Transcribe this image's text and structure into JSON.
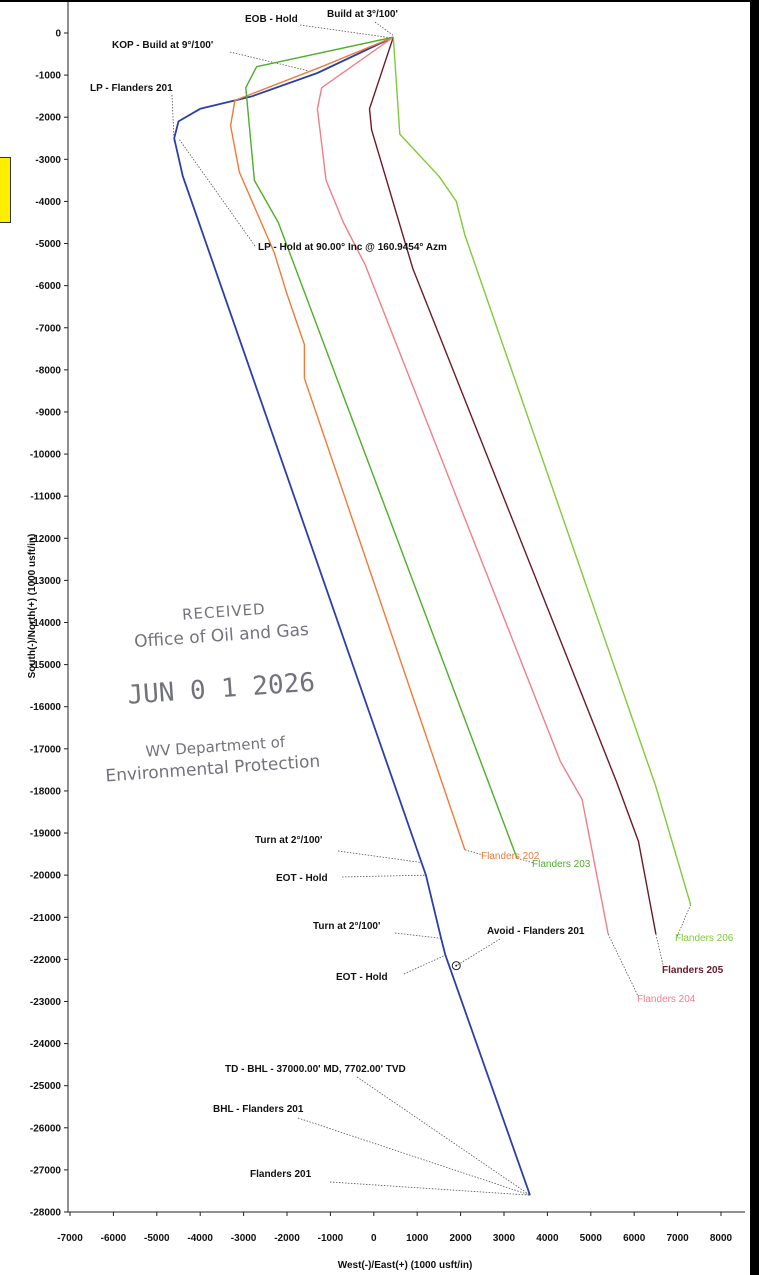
{
  "chart_data": {
    "type": "line",
    "xlabel": "West(-)/East(+) (1000 usft/in)",
    "ylabel": "South(-)/North(+) (1000 usft/in)",
    "xlim": [
      -7000,
      8000
    ],
    "ylim": [
      -28000,
      0
    ],
    "xticks": [
      -7000,
      -6000,
      -5000,
      -4000,
      -3000,
      -2000,
      -1000,
      0,
      1000,
      2000,
      3000,
      4000,
      5000,
      6000,
      7000,
      8000
    ],
    "yticks": [
      0,
      -1000,
      -2000,
      -3000,
      -4000,
      -5000,
      -6000,
      -7000,
      -8000,
      -9000,
      -10000,
      -11000,
      -12000,
      -13000,
      -14000,
      -15000,
      -16000,
      -17000,
      -18000,
      -19000,
      -20000,
      -21000,
      -22000,
      -23000,
      -24000,
      -25000,
      -26000,
      -27000,
      -28000
    ],
    "series": [
      {
        "name": "Flanders 201",
        "color": "#2b3fa8",
        "points": [
          [
            450,
            -100
          ],
          [
            -1300,
            -950
          ],
          [
            -2800,
            -1500
          ],
          [
            -4000,
            -1800
          ],
          [
            -4500,
            -2100
          ],
          [
            -4600,
            -2500
          ],
          [
            -4400,
            -3400
          ],
          [
            1100,
            -19700
          ],
          [
            1200,
            -20000
          ],
          [
            1550,
            -21500
          ],
          [
            1650,
            -21900
          ],
          [
            3600,
            -27600
          ]
        ]
      },
      {
        "name": "Flanders 202",
        "color": "#f07a3a",
        "points": [
          [
            450,
            -100
          ],
          [
            -1200,
            -800
          ],
          [
            -3200,
            -1600
          ],
          [
            -3300,
            -2200
          ],
          [
            -3100,
            -3300
          ],
          [
            -2300,
            -5200
          ],
          [
            -2000,
            -6200
          ],
          [
            -1600,
            -7400
          ],
          [
            -1600,
            -8200
          ],
          [
            2100,
            -19400
          ]
        ]
      },
      {
        "name": "Flanders 203",
        "color": "#4fae2a",
        "points": [
          [
            450,
            -100
          ],
          [
            -2700,
            -800
          ],
          [
            -2950,
            -1300
          ],
          [
            -2750,
            -3500
          ],
          [
            -2200,
            -4500
          ],
          [
            3300,
            -19600
          ]
        ]
      },
      {
        "name": "Flanders 204",
        "color": "#ef7f8a",
        "points": [
          [
            450,
            -100
          ],
          [
            -1200,
            -1300
          ],
          [
            -1300,
            -1800
          ],
          [
            -1100,
            -3500
          ],
          [
            -700,
            -4500
          ],
          [
            -200,
            -5500
          ],
          [
            4300,
            -17300
          ],
          [
            4800,
            -18200
          ],
          [
            5400,
            -21400
          ]
        ]
      },
      {
        "name": "Flanders 205",
        "color": "#6a1a2a",
        "points": [
          [
            450,
            -100
          ],
          [
            -100,
            -1800
          ],
          [
            -50,
            -2300
          ],
          [
            900,
            -5600
          ],
          [
            5600,
            -17800
          ],
          [
            6100,
            -19200
          ],
          [
            6500,
            -21400
          ]
        ]
      },
      {
        "name": "Flanders 206",
        "color": "#7ecb3a",
        "points": [
          [
            450,
            -100
          ],
          [
            600,
            -2400
          ],
          [
            1500,
            -3400
          ],
          [
            1900,
            -4000
          ],
          [
            2100,
            -4800
          ],
          [
            6500,
            -17900
          ],
          [
            7300,
            -20700
          ]
        ]
      }
    ],
    "annotations": [
      {
        "text": "EOB - Hold",
        "at": [
          430,
          -120
        ]
      },
      {
        "text": "Build at 3°/100'",
        "at": [
          450,
          -60
        ]
      },
      {
        "text": "KOP - Build at 9°/100'",
        "at": [
          -1500,
          -900
        ]
      },
      {
        "text": "LP - Flanders 201",
        "at": [
          -4600,
          -2600
        ]
      },
      {
        "text": "LP - Hold at 90.00° Inc @ 160.9454° Azm",
        "at": [
          -4500,
          -2500
        ]
      },
      {
        "text": "Turn at 2°/100'",
        "at": [
          1100,
          -19700
        ]
      },
      {
        "text": "EOT - Hold",
        "at": [
          1200,
          -20000
        ]
      },
      {
        "text": "Turn at 2°/100'",
        "at": [
          1550,
          -21500
        ]
      },
      {
        "text": "EOT - Hold",
        "at": [
          1650,
          -21900
        ]
      },
      {
        "text": "Avoid - Flanders 201",
        "at": [
          1900,
          -22150
        ]
      },
      {
        "text": "TD - BHL - 37000.00' MD, 7702.00' TVD",
        "at": [
          3600,
          -27600
        ]
      },
      {
        "text": "BHL - Flanders 201",
        "at": [
          3600,
          -27600
        ]
      },
      {
        "text": "Flanders 201",
        "at": [
          3600,
          -27600
        ]
      }
    ],
    "end_labels": [
      "Flanders 202",
      "Flanders 203",
      "Flanders 204",
      "Flanders 205",
      "Flanders 206"
    ],
    "grid": false,
    "legend": "none"
  },
  "stamp": {
    "line1": "RECEIVED",
    "line2": "Office of Oil and Gas",
    "date": "JUN 0 1 2026",
    "line3": "WV Department of",
    "line4": "Environmental Protection"
  }
}
